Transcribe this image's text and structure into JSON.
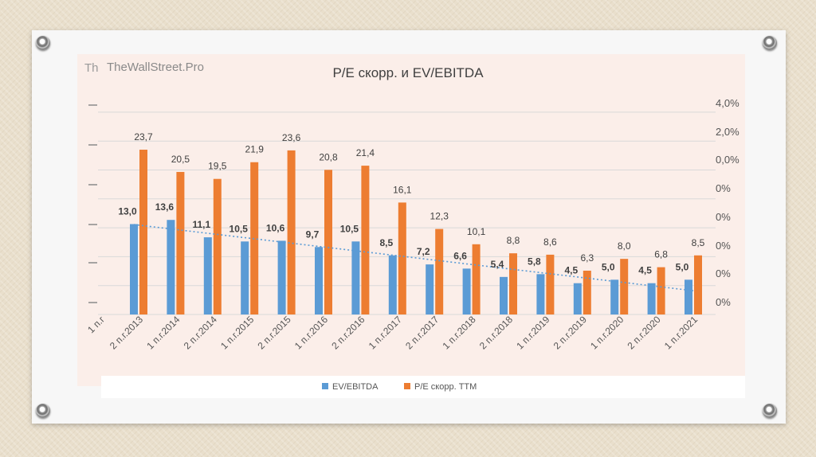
{
  "slide": {
    "watermark_left": "Th",
    "watermark": "TheWallStreet.Pro"
  },
  "chart_data": {
    "type": "bar",
    "title": "P/E скорр. и EV/EBITDA",
    "categories": [
      "2 п.г.2013",
      "1 п.г.2014",
      "2 п.г.2014",
      "1 п.г.2015",
      "2 п.г.2015",
      "1 п.г.2016",
      "2 п.г.2016",
      "1 п.г.2017",
      "2 п.г.2017",
      "1 п.г.2018",
      "2 п.г.2018",
      "1 п.г.2019",
      "2 п.г.2019",
      "1 п.г.2020",
      "2 п.г.2020",
      "1 п.г.2021"
    ],
    "partial_first_category": "1 п.г",
    "series": [
      {
        "name": "EV/EBITDA",
        "color": "#5b9bd5",
        "values": [
          13.0,
          13.6,
          11.1,
          10.5,
          10.6,
          9.7,
          10.5,
          8.5,
          7.2,
          6.6,
          5.4,
          5.8,
          4.5,
          5.0,
          4.5,
          5.0
        ],
        "labels": [
          "13,0",
          "13,6",
          "11,1",
          "10,5",
          "10,6",
          "9,7",
          "10,5",
          "8,5",
          "7,2",
          "6,6",
          "5,4",
          "5,8",
          "4,5",
          "5,0",
          "4,5",
          "5,0"
        ]
      },
      {
        "name": "P/E скорр. TTM",
        "color": "#ed7d31",
        "values": [
          23.7,
          20.5,
          19.5,
          21.9,
          23.6,
          20.8,
          21.4,
          16.1,
          12.3,
          10.1,
          8.8,
          8.6,
          6.3,
          8.0,
          6.8,
          8.5
        ],
        "labels": [
          "23,7",
          "20,5",
          "19,5",
          "21,9",
          "23,6",
          "20,8",
          "21,4",
          "16,1",
          "12,3",
          "10,1",
          "8,8",
          "8,6",
          "6,3",
          "8,0",
          "6,8",
          "8,5"
        ]
      }
    ],
    "trendline": {
      "series": "EV/EBITDA",
      "style": "dotted",
      "color": "#5b9bd5"
    },
    "ylim": [
      0,
      30
    ],
    "right_axis_ticks": [
      "4,0%",
      "2,0%",
      "0,0%",
      "0%",
      "0%",
      "0%",
      "0%",
      "0%"
    ]
  }
}
